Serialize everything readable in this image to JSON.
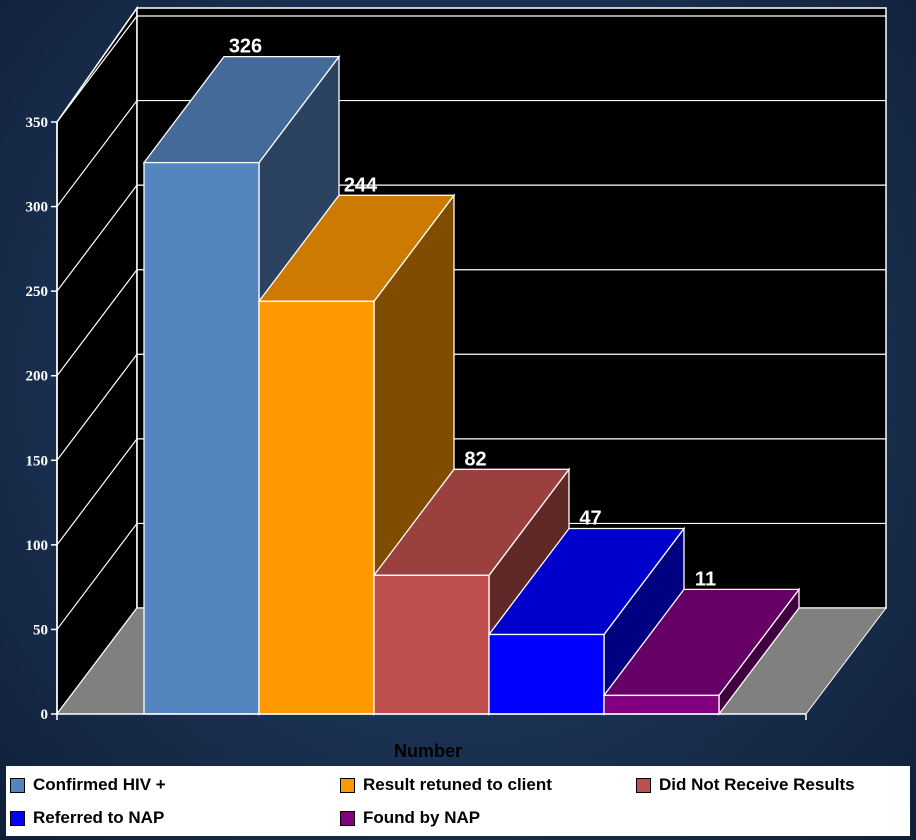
{
  "chart_data": {
    "type": "bar",
    "style": "3d-column",
    "categories": [
      "Confirmed HIV +",
      "Result retuned to client",
      "Did Not Receive Results",
      "Referred to NAP",
      "Found by NAP"
    ],
    "values": [
      326,
      244,
      82,
      47,
      11
    ],
    "data_labels": [
      "326",
      "244",
      "82",
      "47",
      "11"
    ],
    "colors": [
      "#5585bf",
      "#ff9900",
      "#c0504d",
      "#0000ff",
      "#800080"
    ],
    "xlabel": "Number",
    "ylabel": "",
    "ylim": [
      0,
      350
    ],
    "yticks": [
      0,
      50,
      100,
      150,
      200,
      250,
      300,
      350
    ],
    "ytick_labels": [
      "0",
      "50",
      "100",
      "150",
      "200",
      "250",
      "300",
      "350"
    ],
    "grid": true,
    "plot_background": "#000000",
    "floor_color": "#808080",
    "legend_position": "bottom"
  },
  "legend": {
    "items": [
      {
        "label": "Confirmed HIV +",
        "color": "#5585bf"
      },
      {
        "label": "Result retuned to client",
        "color": "#ff9900"
      },
      {
        "label": "Did Not Receive Results",
        "color": "#c0504d"
      },
      {
        "label": "Referred to NAP",
        "color": "#0000ff"
      },
      {
        "label": "Found by NAP",
        "color": "#800080"
      }
    ]
  }
}
